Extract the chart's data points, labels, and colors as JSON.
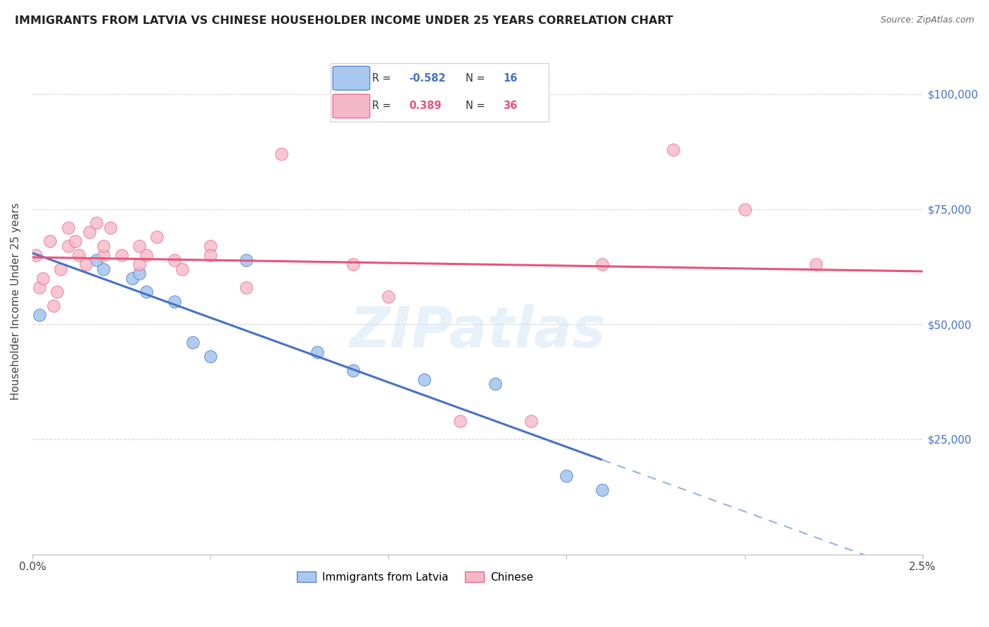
{
  "title": "IMMIGRANTS FROM LATVIA VS CHINESE HOUSEHOLDER INCOME UNDER 25 YEARS CORRELATION CHART",
  "source": "Source: ZipAtlas.com",
  "ylabel": "Householder Income Under 25 years",
  "legend_label1": "Immigrants from Latvia",
  "legend_label2": "Chinese",
  "r1": -0.582,
  "n1": 16,
  "r2": 0.389,
  "n2": 36,
  "yticks": [
    0,
    25000,
    50000,
    75000,
    100000
  ],
  "ytick_labels": [
    "",
    "$25,000",
    "$50,000",
    "$75,000",
    "$100,000"
  ],
  "xlim": [
    0.0,
    0.025
  ],
  "ylim": [
    0,
    110000
  ],
  "color_latvia": "#a8c8f0",
  "color_chinese": "#f5b8c8",
  "color_line_latvia": "#4472c4",
  "color_line_chinese": "#e8537a",
  "background_color": "#ffffff",
  "watermark": "ZIPatlas",
  "latvia_x": [
    0.0002,
    0.0018,
    0.002,
    0.0028,
    0.003,
    0.0032,
    0.004,
    0.0045,
    0.005,
    0.006,
    0.008,
    0.009,
    0.011,
    0.013,
    0.015,
    0.016
  ],
  "latvia_y": [
    52000,
    64000,
    62000,
    60000,
    61000,
    57000,
    55000,
    46000,
    43000,
    64000,
    44000,
    40000,
    38000,
    37000,
    17000,
    14000
  ],
  "chinese_x": [
    0.0001,
    0.0002,
    0.0003,
    0.0005,
    0.0006,
    0.0007,
    0.0008,
    0.001,
    0.001,
    0.0012,
    0.0013,
    0.0015,
    0.0016,
    0.0018,
    0.002,
    0.002,
    0.0022,
    0.0025,
    0.003,
    0.003,
    0.0032,
    0.0035,
    0.004,
    0.0042,
    0.005,
    0.005,
    0.006,
    0.007,
    0.009,
    0.01,
    0.012,
    0.014,
    0.016,
    0.018,
    0.02,
    0.022
  ],
  "chinese_y": [
    65000,
    58000,
    60000,
    68000,
    54000,
    57000,
    62000,
    67000,
    71000,
    68000,
    65000,
    63000,
    70000,
    72000,
    65000,
    67000,
    71000,
    65000,
    63000,
    67000,
    65000,
    69000,
    64000,
    62000,
    67000,
    65000,
    58000,
    87000,
    63000,
    56000,
    29000,
    29000,
    63000,
    88000,
    75000,
    63000
  ]
}
